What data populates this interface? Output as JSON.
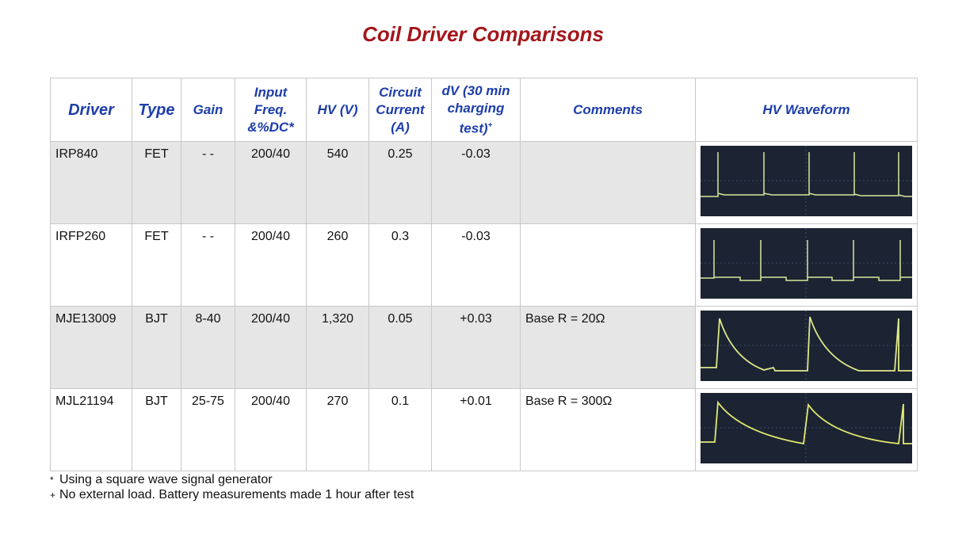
{
  "title": "Coil Driver Comparisons",
  "table": {
    "headers": [
      "Driver",
      "Type",
      "Gain",
      "Input Freq. &%DC*",
      "HV (V)",
      "Circuit Current (A)",
      "dV (30 min charging test)",
      "Comments",
      "HV Waveform"
    ],
    "dv_header_mark": "+",
    "rows": [
      [
        "IRP840",
        "FET",
        "- -",
        "200/40",
        "540",
        "0.25",
        "-0.03"
      ],
      [
        "IRFP260",
        "FET",
        "- -",
        "200/40",
        "260",
        "0.3",
        "-0.03"
      ],
      [
        "MJE13009",
        "BJT",
        "8-40",
        "200/40",
        "1,320",
        "0.05",
        "+0.03",
        "Base R = 20Ω"
      ],
      [
        "MJL21194",
        "BJT",
        "25-75",
        "200/40",
        "270",
        "0.1",
        "+0.01",
        "Base R = 300Ω"
      ]
    ]
  },
  "footnotes": [
    {
      "marker": "*",
      "text": "Using a square wave signal generator"
    },
    {
      "marker": "+",
      "text": "No external load. Battery measurements made 1 hour after test"
    }
  ]
}
